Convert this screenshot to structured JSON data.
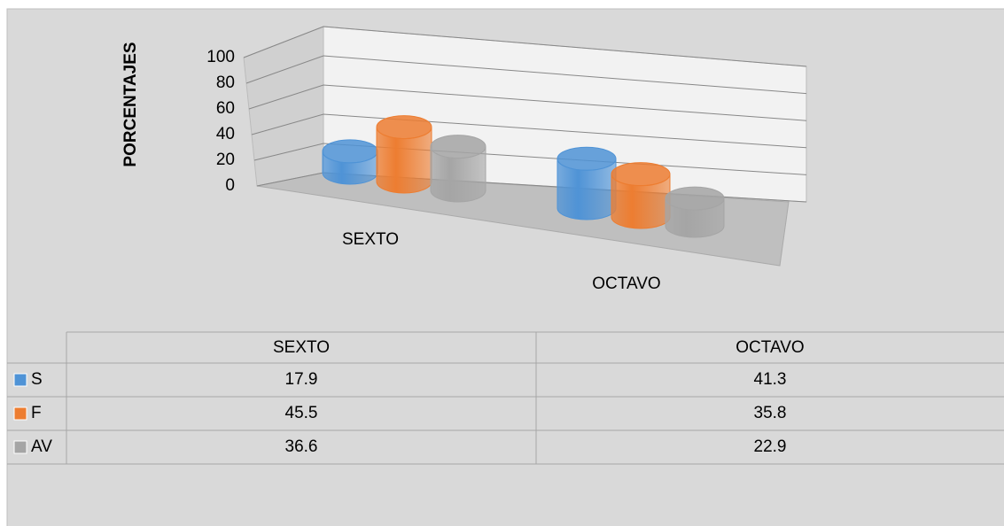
{
  "chart_data": {
    "type": "bar",
    "y_label": "PORCENTAJES",
    "categories": [
      "SEXTO",
      "OCTAVO"
    ],
    "series": [
      {
        "name": "S",
        "color": "#4f93d6",
        "values": [
          17.9,
          41.3
        ]
      },
      {
        "name": "F",
        "color": "#ed7d31",
        "values": [
          45.5,
          35.8
        ]
      },
      {
        "name": "AV",
        "color": "#a5a5a5",
        "values": [
          36.6,
          22.9
        ]
      }
    ],
    "ylim": [
      0,
      100
    ],
    "yticks": [
      0,
      20,
      40,
      60,
      80,
      100
    ],
    "grid": true,
    "data_table": true
  }
}
